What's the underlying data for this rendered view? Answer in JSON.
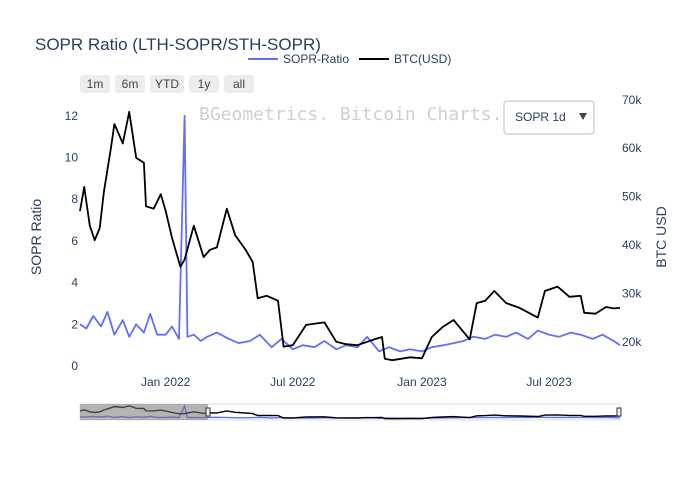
{
  "chart_data": {
    "type": "line",
    "title": "SOPR Ratio (LTH-SOPR/STH-SOPR)",
    "watermark": "BGeometrics. Bitcoin Charts.",
    "dropdown": {
      "selected": "SOPR 1d"
    },
    "range_buttons": [
      "1m",
      "6m",
      "YTD",
      "1y",
      "all"
    ],
    "yaxis_left": {
      "title": "SOPR Ratio",
      "range": [
        0,
        13
      ],
      "ticks": [
        "0",
        "2",
        "4",
        "6",
        "8",
        "10",
        "12"
      ]
    },
    "yaxis_right": {
      "title": "BTC USD",
      "range": [
        15000,
        71000
      ],
      "ticks": [
        "20k",
        "30k",
        "40k",
        "50k",
        "60k",
        "70k"
      ]
    },
    "xaxis": {
      "range": [
        "2021-09-01",
        "2023-10-10"
      ],
      "ticks": [
        "Jan 2022",
        "Jul 2022",
        "Jan 2023",
        "Jul 2023"
      ]
    },
    "legend_position": "top-center",
    "series": [
      {
        "name": "SOPR-Ratio",
        "color": "#636efa",
        "axis": "left",
        "x": [
          "2021-09-01",
          "2021-09-10",
          "2021-09-20",
          "2021-10-01",
          "2021-10-10",
          "2021-10-20",
          "2021-11-01",
          "2021-11-10",
          "2021-11-20",
          "2021-12-01",
          "2021-12-10",
          "2021-12-20",
          "2022-01-01",
          "2022-01-10",
          "2022-01-20",
          "2022-01-28",
          "2022-02-01",
          "2022-02-10",
          "2022-02-20",
          "2022-03-01",
          "2022-03-15",
          "2022-04-01",
          "2022-04-15",
          "2022-05-01",
          "2022-05-15",
          "2022-06-01",
          "2022-06-15",
          "2022-07-01",
          "2022-07-15",
          "2022-08-01",
          "2022-08-15",
          "2022-09-01",
          "2022-09-15",
          "2022-10-01",
          "2022-10-15",
          "2022-11-01",
          "2022-11-15",
          "2022-12-01",
          "2022-12-15",
          "2023-01-01",
          "2023-01-15",
          "2023-02-01",
          "2023-02-15",
          "2023-03-01",
          "2023-03-15",
          "2023-04-01",
          "2023-04-15",
          "2023-05-01",
          "2023-05-15",
          "2023-06-01",
          "2023-06-15",
          "2023-07-01",
          "2023-07-15",
          "2023-08-01",
          "2023-08-15",
          "2023-09-01",
          "2023-09-15",
          "2023-10-01",
          "2023-10-10"
        ],
        "y": [
          2.0,
          1.8,
          2.4,
          1.9,
          2.6,
          1.5,
          2.2,
          1.4,
          2.0,
          1.6,
          2.5,
          1.5,
          1.5,
          1.9,
          1.3,
          12.0,
          1.4,
          1.5,
          1.2,
          1.4,
          1.6,
          1.3,
          1.1,
          1.2,
          1.5,
          0.9,
          1.3,
          0.8,
          1.0,
          0.9,
          1.2,
          0.8,
          1.0,
          0.9,
          1.4,
          0.7,
          0.9,
          0.7,
          0.8,
          0.7,
          0.9,
          1.0,
          1.1,
          1.2,
          1.4,
          1.3,
          1.5,
          1.4,
          1.6,
          1.3,
          1.7,
          1.5,
          1.4,
          1.6,
          1.5,
          1.3,
          1.5,
          1.2,
          1.0
        ]
      },
      {
        "name": "BTC(USD)",
        "color": "#000000",
        "axis": "right",
        "x": [
          "2021-09-01",
          "2021-09-07",
          "2021-09-15",
          "2021-09-22",
          "2021-09-29",
          "2021-10-05",
          "2021-10-15",
          "2021-10-20",
          "2021-11-01",
          "2021-11-10",
          "2021-11-20",
          "2021-12-01",
          "2021-12-04",
          "2021-12-15",
          "2021-12-25",
          "2022-01-01",
          "2022-01-10",
          "2022-01-22",
          "2022-01-28",
          "2022-02-10",
          "2022-02-24",
          "2022-03-05",
          "2022-03-15",
          "2022-03-29",
          "2022-04-10",
          "2022-04-25",
          "2022-05-05",
          "2022-05-12",
          "2022-05-25",
          "2022-06-10",
          "2022-06-18",
          "2022-07-01",
          "2022-07-20",
          "2022-08-15",
          "2022-09-01",
          "2022-09-15",
          "2022-10-01",
          "2022-10-25",
          "2022-11-05",
          "2022-11-09",
          "2022-11-20",
          "2022-12-15",
          "2023-01-01",
          "2023-01-15",
          "2023-01-30",
          "2023-02-15",
          "2023-03-10",
          "2023-03-20",
          "2023-04-01",
          "2023-04-14",
          "2023-05-01",
          "2023-05-20",
          "2023-06-15",
          "2023-06-25",
          "2023-07-13",
          "2023-07-30",
          "2023-08-15",
          "2023-08-20",
          "2023-09-05",
          "2023-09-20",
          "2023-10-01",
          "2023-10-10"
        ],
        "y": [
          47000,
          52000,
          44000,
          41000,
          43500,
          51000,
          60000,
          65000,
          61000,
          67500,
          58000,
          57000,
          48000,
          47500,
          50500,
          47000,
          41500,
          35500,
          37000,
          44000,
          37500,
          39000,
          39500,
          47500,
          42000,
          39000,
          36500,
          29000,
          29500,
          28500,
          19000,
          19300,
          23500,
          24000,
          20000,
          19500,
          19300,
          20500,
          21000,
          16500,
          16200,
          16800,
          16600,
          21000,
          23000,
          24500,
          20500,
          28000,
          28500,
          30500,
          28000,
          27000,
          25000,
          30500,
          31400,
          29300,
          29500,
          26000,
          25800,
          27200,
          26900,
          27000
        ]
      }
    ]
  }
}
